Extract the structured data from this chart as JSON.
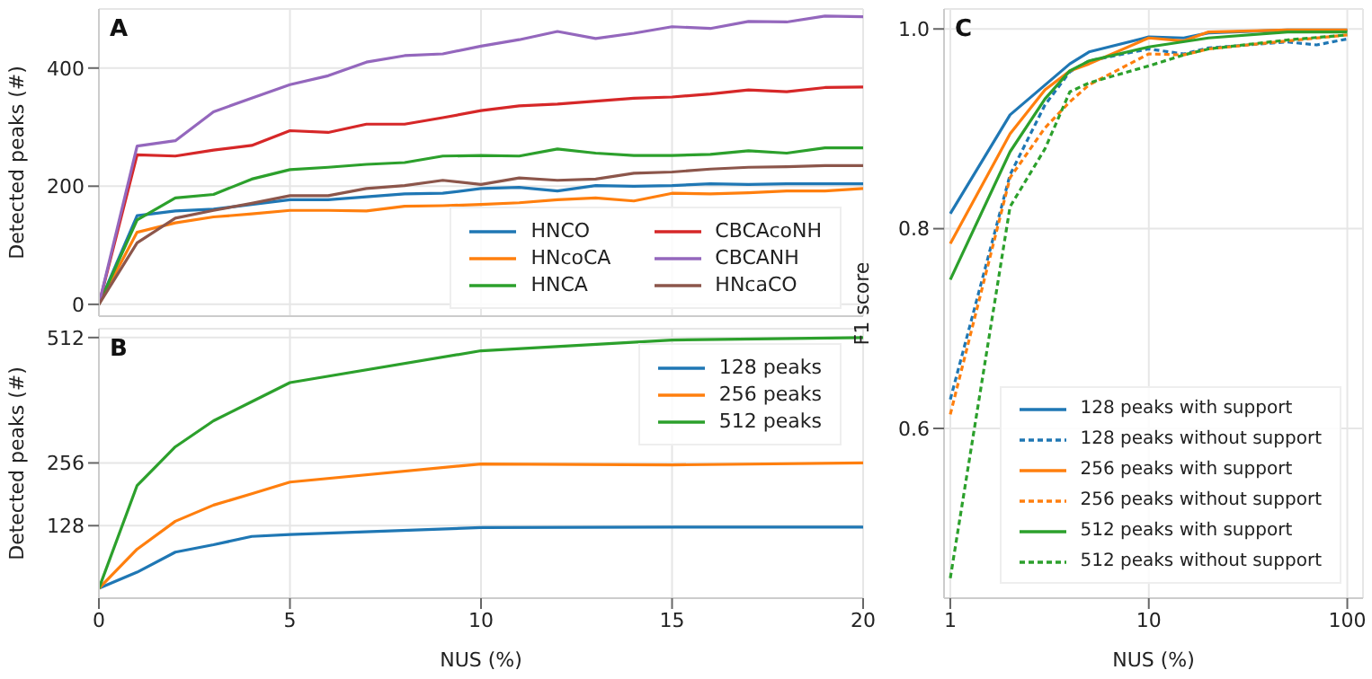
{
  "chart_data": [
    {
      "type": "line",
      "annotations": [
        "A"
      ],
      "ylabel": "Detected peaks (#)",
      "x": [
        0,
        1,
        2,
        3,
        4,
        5,
        6,
        7,
        8,
        9,
        10,
        11,
        12,
        13,
        14,
        15,
        16,
        17,
        18,
        19,
        20
      ],
      "xlim": [
        0,
        20
      ],
      "xticks": [
        0,
        5,
        10,
        15,
        20
      ],
      "ylim": [
        -20,
        500
      ],
      "yticks": [
        0,
        200,
        400
      ],
      "grid": true,
      "tick_labels": "y",
      "legend": "bottom right",
      "series": [
        {
          "name": "HNCO",
          "color": "#1f77b4",
          "values": [
            0,
            150,
            158,
            161,
            169,
            177,
            177,
            182,
            187,
            188,
            196,
            198,
            192,
            201,
            200,
            201,
            204,
            203,
            204,
            204,
            204
          ]
        },
        {
          "name": "HNcoCA",
          "color": "#ff7f0e",
          "values": [
            0,
            122,
            138,
            148,
            153,
            159,
            159,
            158,
            166,
            167,
            169,
            172,
            177,
            180,
            175,
            188,
            187,
            189,
            192,
            192,
            196
          ]
        },
        {
          "name": "HNCA",
          "color": "#2ca02c",
          "values": [
            0,
            143,
            180,
            186,
            212,
            228,
            232,
            237,
            240,
            251,
            252,
            251,
            263,
            256,
            252,
            252,
            254,
            260,
            256,
            265,
            265
          ]
        },
        {
          "name": "CBCAcoNH",
          "color": "#d62728",
          "values": [
            0,
            253,
            251,
            261,
            269,
            294,
            291,
            305,
            305,
            316,
            328,
            336,
            339,
            344,
            349,
            351,
            356,
            363,
            360,
            367,
            368
          ]
        },
        {
          "name": "CBCANH",
          "color": "#9467bd",
          "values": [
            0,
            268,
            277,
            326,
            349,
            372,
            387,
            410,
            421,
            424,
            437,
            448,
            462,
            450,
            459,
            470,
            467,
            479,
            478,
            488,
            487
          ]
        },
        {
          "name": "HNcaCO",
          "color": "#8c564b",
          "values": [
            0,
            104,
            146,
            159,
            171,
            184,
            184,
            196,
            201,
            210,
            203,
            214,
            210,
            212,
            222,
            224,
            229,
            232,
            233,
            235,
            235
          ]
        }
      ]
    },
    {
      "type": "line",
      "annotations": [
        "B"
      ],
      "xlabel": "NUS (%)",
      "ylabel": "Detected peaks (#)",
      "x": [
        0,
        1,
        2,
        3,
        4,
        5,
        10,
        15,
        20
      ],
      "xlim": [
        0,
        20
      ],
      "xticks": [
        0,
        5,
        10,
        15,
        20
      ],
      "ylim": [
        -20,
        530
      ],
      "yticks": [
        128,
        256,
        512
      ],
      "grid": true,
      "legend": "top right",
      "series": [
        {
          "name": "128 peaks",
          "color": "#1f77b4",
          "values": [
            0,
            33,
            74,
            89,
            106,
            110,
            124,
            125,
            125
          ]
        },
        {
          "name": "256 peaks",
          "color": "#ff7f0e",
          "values": [
            0,
            80,
            137,
            170,
            193,
            217,
            254,
            252,
            256
          ]
        },
        {
          "name": "512 peaks",
          "color": "#2ca02c",
          "values": [
            0,
            210,
            289,
            342,
            381,
            420,
            485,
            507,
            512
          ]
        }
      ]
    },
    {
      "type": "line",
      "annotations": [
        "C"
      ],
      "xlabel": "NUS (%)",
      "ylabel": "F1 score",
      "log": "x",
      "xlim": [
        0.93,
        120
      ],
      "xticks": [
        1,
        10,
        100
      ],
      "ylim": [
        0.43,
        1.02
      ],
      "yticks": [
        {
          "value": 0.6,
          "label": "0.6"
        },
        {
          "value": 0.8,
          "label": "0.8"
        },
        {
          "value": 1.0,
          "label": "1.0"
        }
      ],
      "grid": true,
      "legend": "bottom right",
      "series": [
        {
          "name": "128 peaks with support",
          "color": "#1f77b4",
          "line_style": "solid",
          "x": [
            1,
            2,
            4,
            5,
            10,
            15,
            20,
            50,
            100
          ],
          "values": [
            0.815,
            0.914,
            0.965,
            0.977,
            0.992,
            0.991,
            0.996,
            0.999,
            0.999
          ]
        },
        {
          "name": "128 peaks without support",
          "color": "#1f77b4",
          "line_style": "dashed",
          "x": [
            1,
            2,
            3,
            4,
            5,
            10,
            15,
            20,
            50,
            70,
            100
          ],
          "values": [
            0.629,
            0.854,
            0.924,
            0.957,
            0.968,
            0.98,
            0.975,
            0.981,
            0.987,
            0.984,
            0.99
          ]
        },
        {
          "name": "256 peaks with support",
          "color": "#ff7f0e",
          "line_style": "solid",
          "x": [
            1,
            2,
            3,
            4,
            5,
            10,
            15,
            20,
            50,
            100
          ],
          "values": [
            0.785,
            0.895,
            0.939,
            0.958,
            0.965,
            0.991,
            0.988,
            0.997,
            0.999,
            0.999
          ]
        },
        {
          "name": "256 peaks without support",
          "color": "#ff7f0e",
          "line_style": "dashed",
          "x": [
            1,
            2,
            3,
            4,
            5,
            10,
            15,
            20,
            50,
            100
          ],
          "values": [
            0.614,
            0.851,
            0.901,
            0.927,
            0.944,
            0.975,
            0.974,
            0.98,
            0.988,
            0.994
          ]
        },
        {
          "name": "512 peaks with support",
          "color": "#2ca02c",
          "line_style": "solid",
          "x": [
            1,
            2,
            3,
            4,
            5,
            10,
            20,
            50,
            100
          ],
          "values": [
            0.749,
            0.877,
            0.93,
            0.958,
            0.968,
            0.982,
            0.991,
            0.997,
            0.997
          ]
        },
        {
          "name": "512 peaks without support",
          "color": "#2ca02c",
          "line_style": "dashed",
          "x": [
            1,
            2,
            3,
            4,
            5,
            10,
            15,
            20,
            50,
            100
          ],
          "values": [
            0.45,
            0.822,
            0.88,
            0.937,
            0.946,
            0.963,
            0.974,
            0.98,
            0.989,
            0.994
          ]
        }
      ]
    }
  ]
}
